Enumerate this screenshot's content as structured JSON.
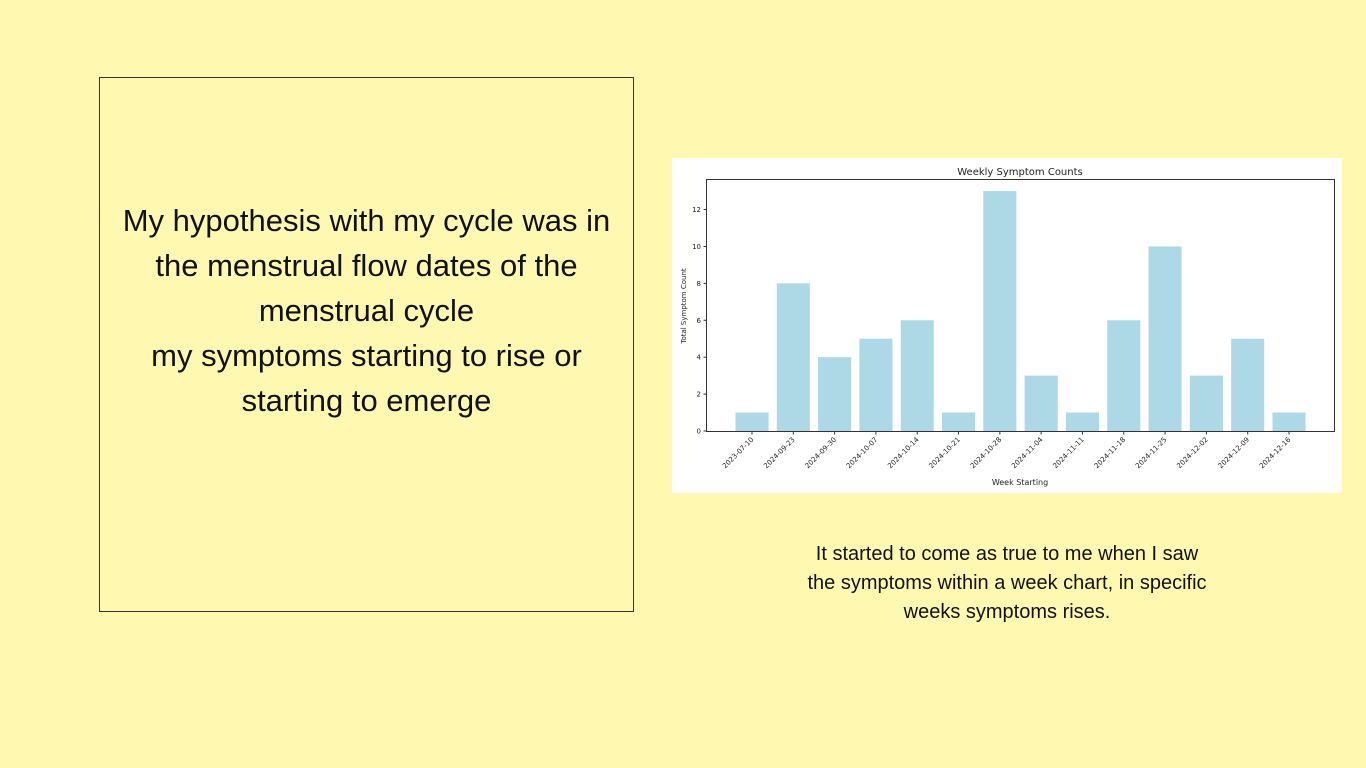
{
  "slide": {
    "background": "#fff8b0",
    "hypothesis_lines": [
      "My hypothesis with my cycle was in",
      "the menstrual flow dates of the",
      "menstrual cycle",
      "my symptoms starting to rise or",
      "starting to emerge"
    ],
    "caption_lines": [
      "It started to come as true to me when I saw",
      "the symptoms within a week chart, in specific",
      "weeks symptoms rises."
    ]
  },
  "chart_data": {
    "type": "bar",
    "title": "Weekly Symptom Counts",
    "xlabel": "Week Starting",
    "ylabel": "Total Symptom Count",
    "categories": [
      "2023-07-10",
      "2024-09-23",
      "2024-09-30",
      "2024-10-07",
      "2024-10-14",
      "2024-10-21",
      "2024-10-28",
      "2024-11-04",
      "2024-11-11",
      "2024-11-18",
      "2024-11-25",
      "2024-12-02",
      "2024-12-09",
      "2024-12-16"
    ],
    "values": [
      1,
      8,
      4,
      5,
      6,
      1,
      13,
      3,
      1,
      6,
      10,
      3,
      5,
      1
    ],
    "ylim": [
      0,
      13.6
    ],
    "yticks": [
      0,
      2,
      4,
      6,
      8,
      10,
      12
    ],
    "bar_color": "#add8e6",
    "grid": false,
    "legend": false
  }
}
